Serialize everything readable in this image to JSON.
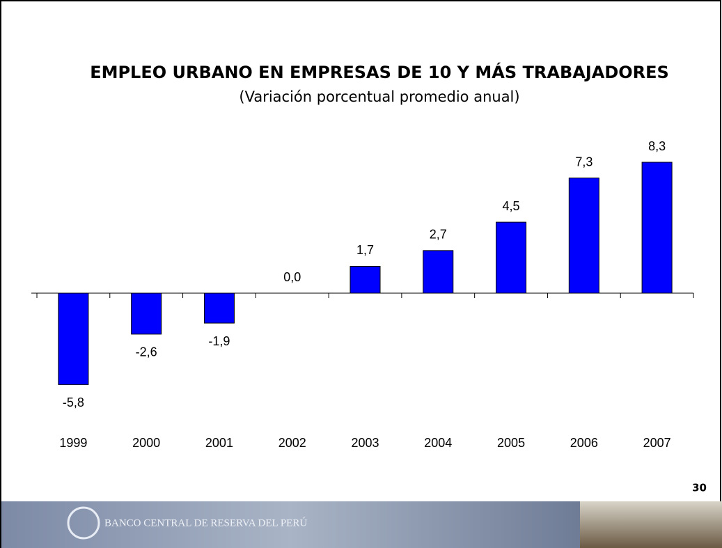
{
  "chart_data": {
    "type": "bar",
    "title": "EMPLEO URBANO EN EMPRESAS DE 10 Y MÁS TRABAJADORES",
    "subtitle": "(Variación porcentual promedio anual)",
    "categories": [
      "1999",
      "2000",
      "2001",
      "2002",
      "2003",
      "2004",
      "2005",
      "2006",
      "2007"
    ],
    "values": [
      -5.8,
      -2.6,
      -1.9,
      0.0,
      1.7,
      2.7,
      4.5,
      7.3,
      8.3
    ],
    "value_labels": [
      "-5,8",
      "-2,6",
      "-1,9",
      "0,0",
      "1,7",
      "2,7",
      "4,5",
      "7,3",
      "8,3"
    ],
    "color": "#0000ff"
  },
  "page_number": "30",
  "footer": "BANCO CENTRAL DE RESERVA DEL PERÚ"
}
